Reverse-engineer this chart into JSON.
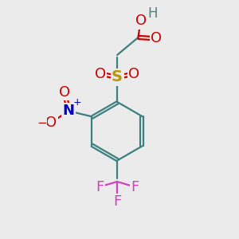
{
  "bg_color": "#ebebeb",
  "colors": {
    "bond": "#3d8080",
    "O": "#cc0000",
    "N": "#0000cc",
    "S": "#b8960c",
    "F": "#cc44bb",
    "H": "#5a7a7a"
  },
  "fig_size": [
    3.0,
    3.0
  ],
  "dpi": 100
}
